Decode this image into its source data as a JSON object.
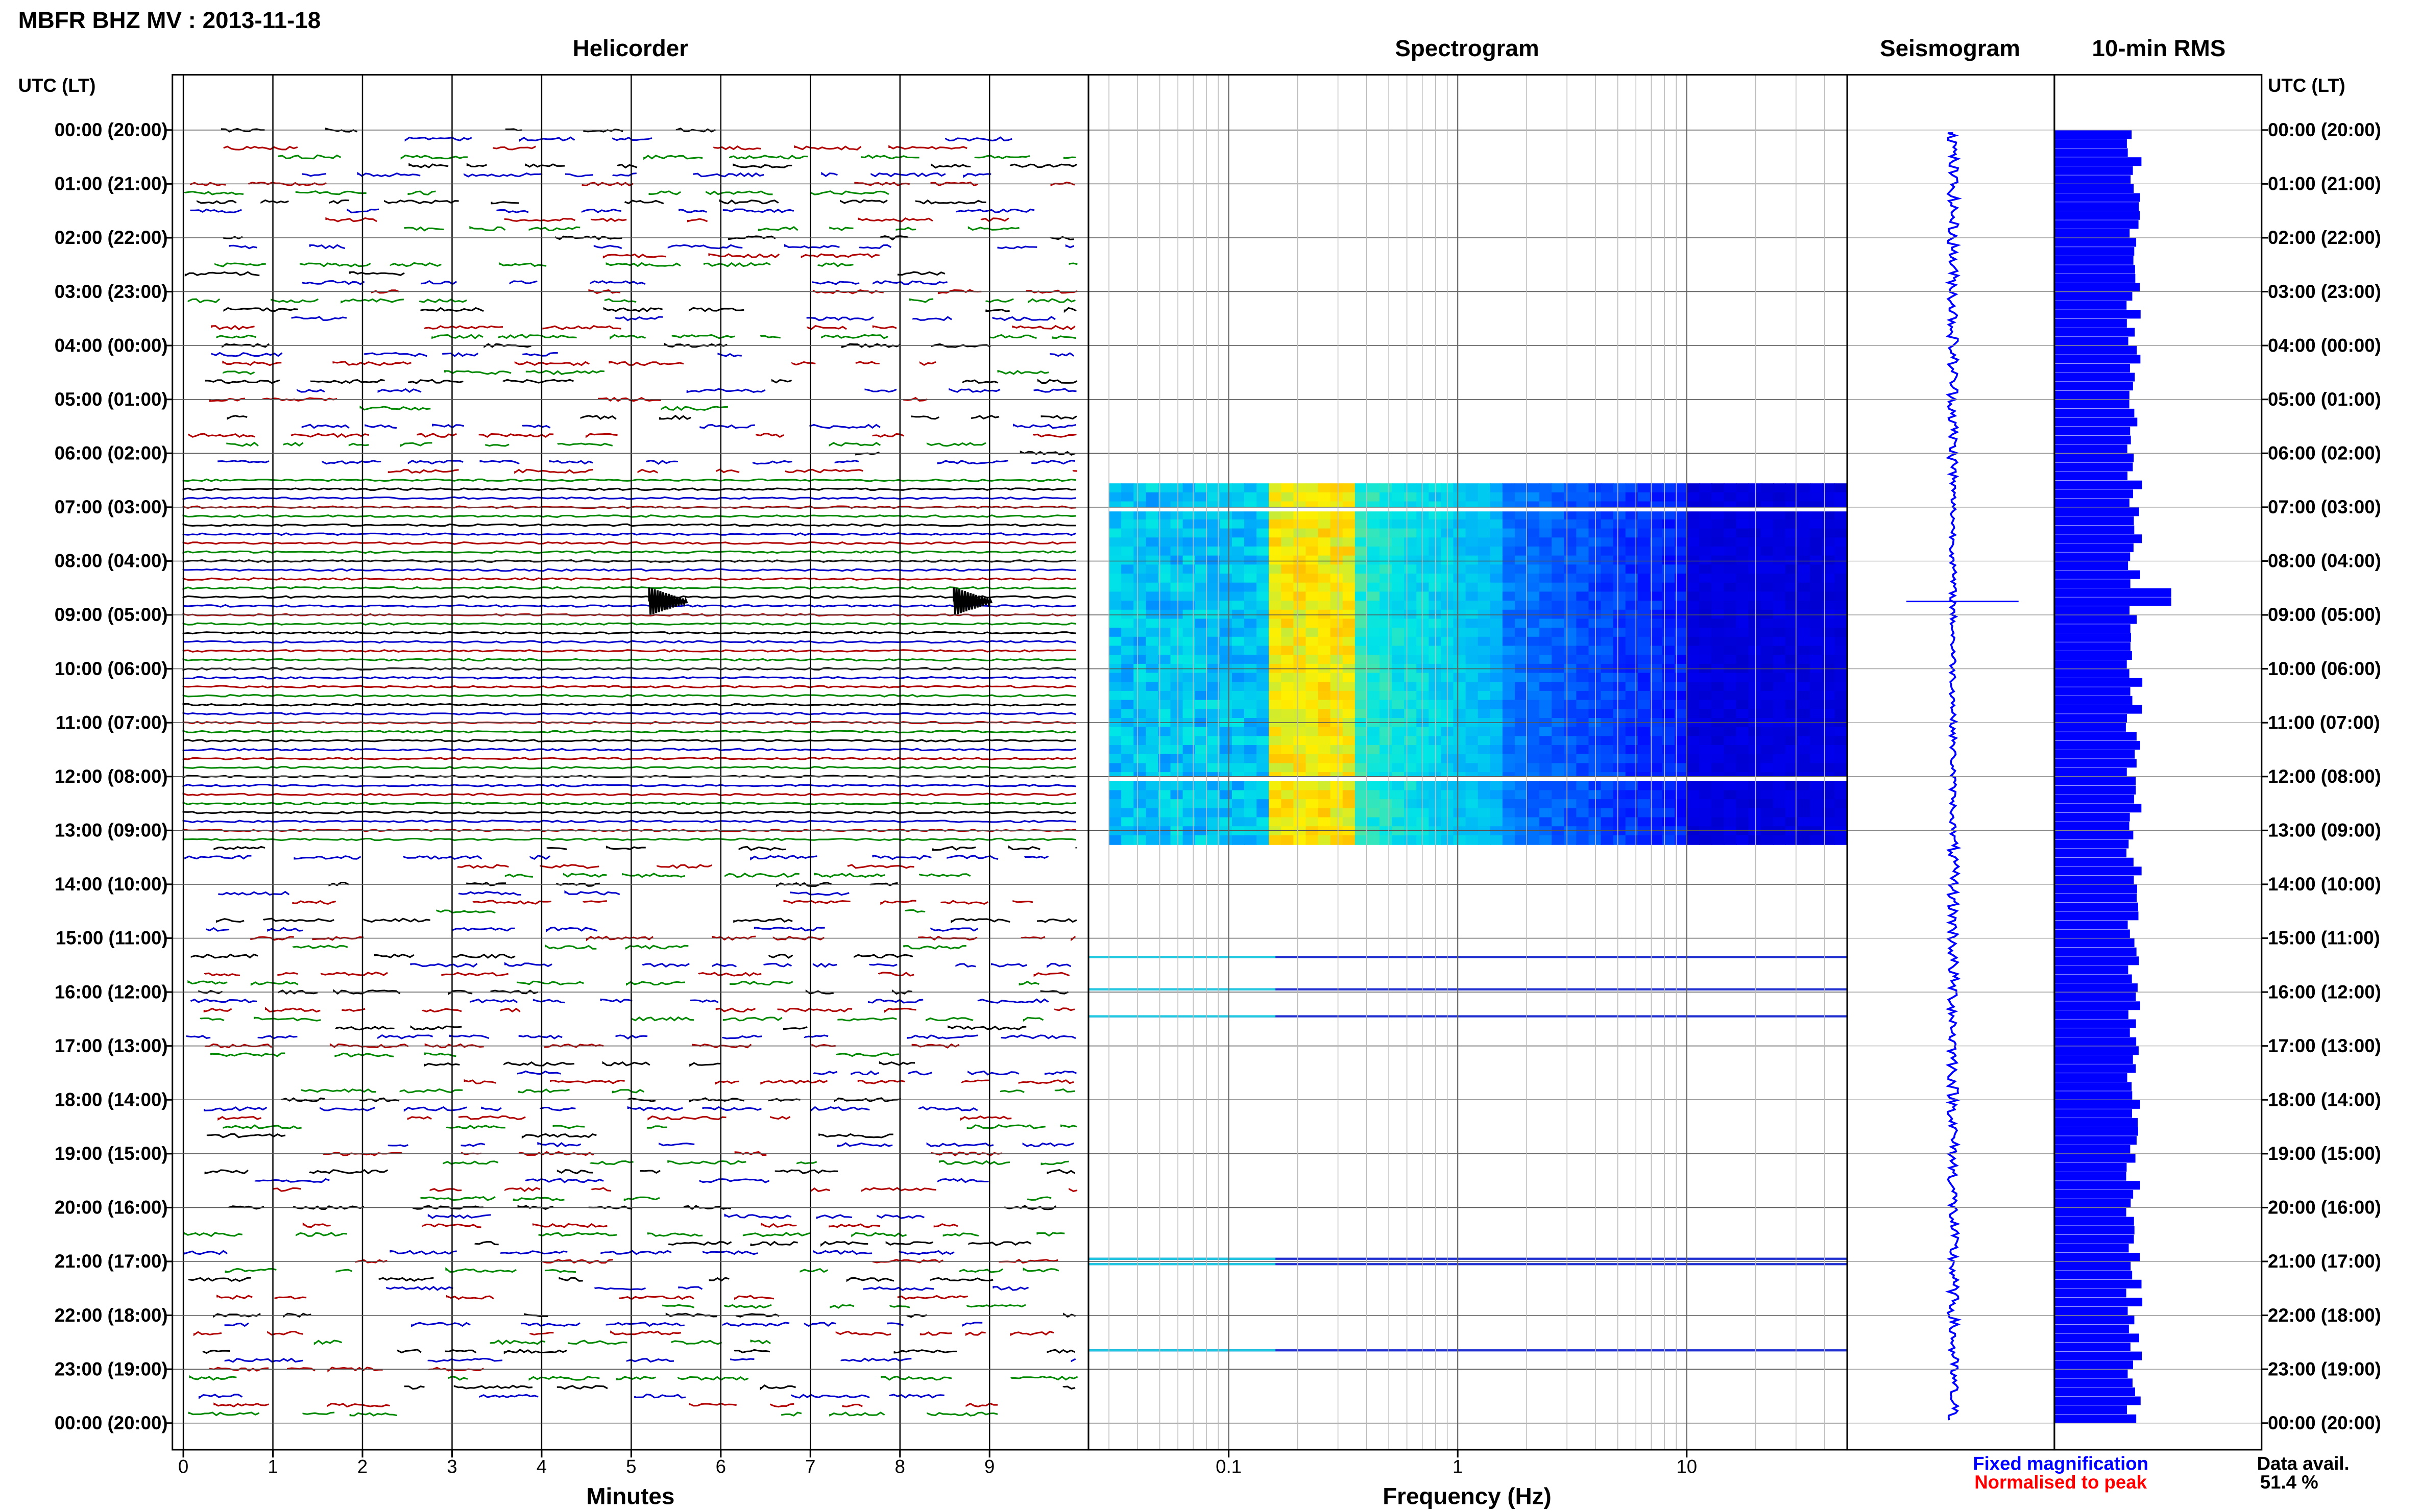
{
  "header": {
    "title": "MBFR BHZ MV : 2013-11-18"
  },
  "panels": {
    "helicorder": "Helicorder",
    "spectrogram": "Spectrogram",
    "seismogram": "Seismogram",
    "rms": "10-min RMS"
  },
  "axis": {
    "time_label_left": "UTC (LT)",
    "time_label_right": "UTC (LT)",
    "minutes_label": "Minutes",
    "frequency_label": "Frequency (Hz)"
  },
  "time_ticks": [
    "00:00 (20:00)",
    "01:00 (21:00)",
    "02:00 (22:00)",
    "03:00 (23:00)",
    "04:00 (00:00)",
    "05:00 (01:00)",
    "06:00 (02:00)",
    "07:00 (03:00)",
    "08:00 (04:00)",
    "09:00 (05:00)",
    "10:00 (06:00)",
    "11:00 (07:00)",
    "12:00 (08:00)",
    "13:00 (09:00)",
    "14:00 (10:00)",
    "15:00 (11:00)",
    "16:00 (12:00)",
    "17:00 (13:00)",
    "18:00 (14:00)",
    "19:00 (15:00)",
    "20:00 (16:00)",
    "21:00 (17:00)",
    "22:00 (18:00)",
    "23:00 (19:00)",
    "00:00 (20:00)"
  ],
  "minute_ticks": [
    "0",
    "1",
    "2",
    "3",
    "4",
    "5",
    "6",
    "7",
    "8",
    "9"
  ],
  "freq_ticks": [
    "0.1",
    "1",
    "10"
  ],
  "legend": {
    "fixed": "Fixed magnification",
    "normalised": "Normalised to peak"
  },
  "data_avail": {
    "label": "Data avail.",
    "value": "51.4 %"
  },
  "colors": {
    "trace_cycle": [
      "#000000",
      "#0000cc",
      "#b00000",
      "#008800"
    ],
    "rms_bar": "#0000ff",
    "legend_fixed": "#0000ff",
    "legend_norm": "#ff0000"
  },
  "chart_data": {
    "type": "heatmap",
    "date": "2013-11-18",
    "station": "MBFR BHZ MV",
    "helicorder": {
      "xlabel": "Minutes",
      "xlim": [
        0,
        10
      ],
      "rows_per_hour": 6,
      "continuous_data_hours": [
        6.5,
        13.2
      ],
      "events": [
        {
          "hour": 8.75,
          "minute": 5.2
        },
        {
          "hour": 8.75,
          "minute": 8.6
        }
      ]
    },
    "spectrogram": {
      "xlabel": "Frequency (Hz)",
      "xscale": "log",
      "xlim": [
        0.03,
        50
      ],
      "data_hours": [
        6.5,
        13.2
      ],
      "partial_hours": [
        15.35,
        15.95,
        16.45,
        20.95,
        21.05,
        22.65
      ]
    },
    "rms": {
      "title": "10-min RMS",
      "bins_per_hour": 6,
      "available_fraction": 0.514,
      "peak_hour": 8.6
    }
  }
}
